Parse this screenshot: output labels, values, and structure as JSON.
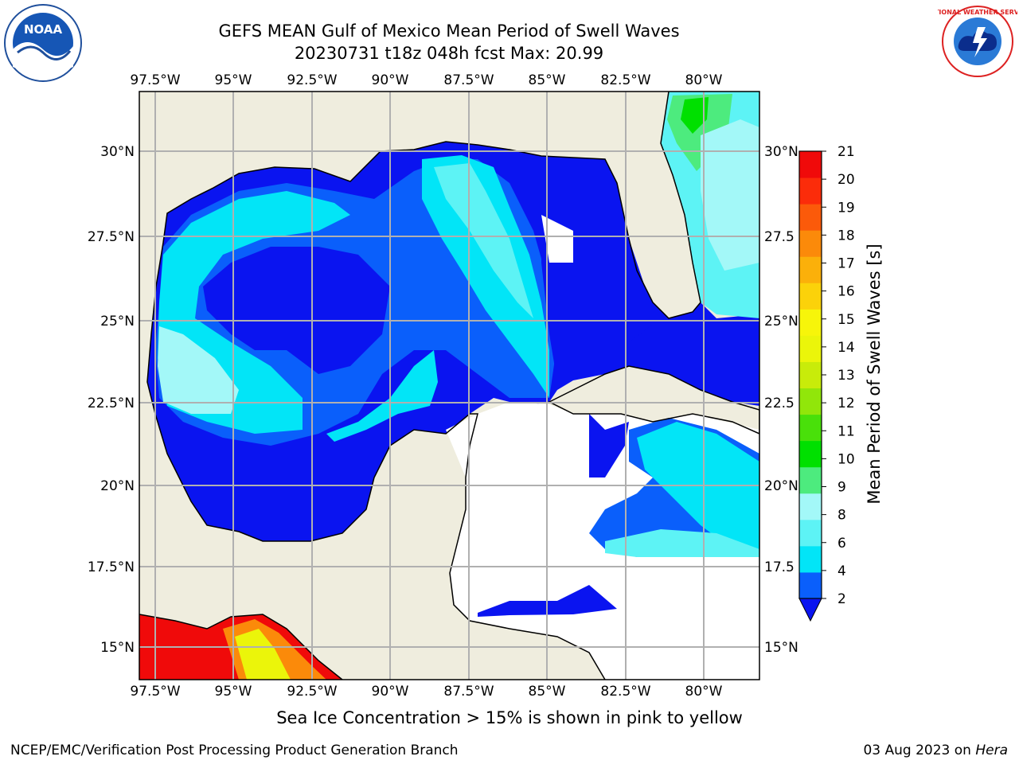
{
  "header": {
    "title_line1": "GEFS MEAN Gulf of Mexico Mean Period of Swell Waves",
    "title_line2": "20230731 t18z 048h fcst   Max: 20.99"
  },
  "logos": {
    "left": {
      "icon": "noaa-logo",
      "text": "NOAA"
    },
    "right": {
      "icon": "nws-logo",
      "text": "NATIONAL WEATHER SERVICE"
    }
  },
  "map": {
    "lon_labels": [
      "97.5°W",
      "95°W",
      "92.5°W",
      "90°W",
      "87.5°W",
      "85°W",
      "82.5°W",
      "80°W"
    ],
    "lat_labels_left": [
      "30°N",
      "27.5°N",
      "25°N",
      "22.5°N",
      "20°N",
      "17.5°N",
      "15°N"
    ],
    "lat_labels_right": [
      "30°N",
      "27.5",
      "25°N",
      "22.5",
      "20°N",
      "17.5",
      "15°N"
    ],
    "land_color": "#efedde",
    "no_data_color": "#ffffff",
    "gridline_color": "#b0b0b0"
  },
  "colorbar": {
    "label": "Mean Period of Swell Waves [s]",
    "ticks": [
      "2",
      "4",
      "6",
      "8",
      "9",
      "10",
      "11",
      "12",
      "13",
      "14",
      "15",
      "16",
      "17",
      "18",
      "19",
      "20",
      "21"
    ],
    "colors": [
      "#0a5ffb",
      "#02e5f7",
      "#5df3f5",
      "#a3f8f8",
      "#4deb7e",
      "#00e000",
      "#49e00a",
      "#91e60a",
      "#c8ec0a",
      "#ebf50a",
      "#f7f50a",
      "#fbd20a",
      "#fbb00a",
      "#fb8a0a",
      "#fb5a0a",
      "#fb2c0a",
      "#f00a0a"
    ],
    "under_color": "#0a14f0"
  },
  "note": "Sea Ice Concentration > 15% is shown in pink to yellow",
  "footer": {
    "left": "NCEP/EMC/Verification Post Processing Product Generation Branch",
    "right_prefix": "03 Aug 2023 on ",
    "right_machine": "Hera"
  }
}
